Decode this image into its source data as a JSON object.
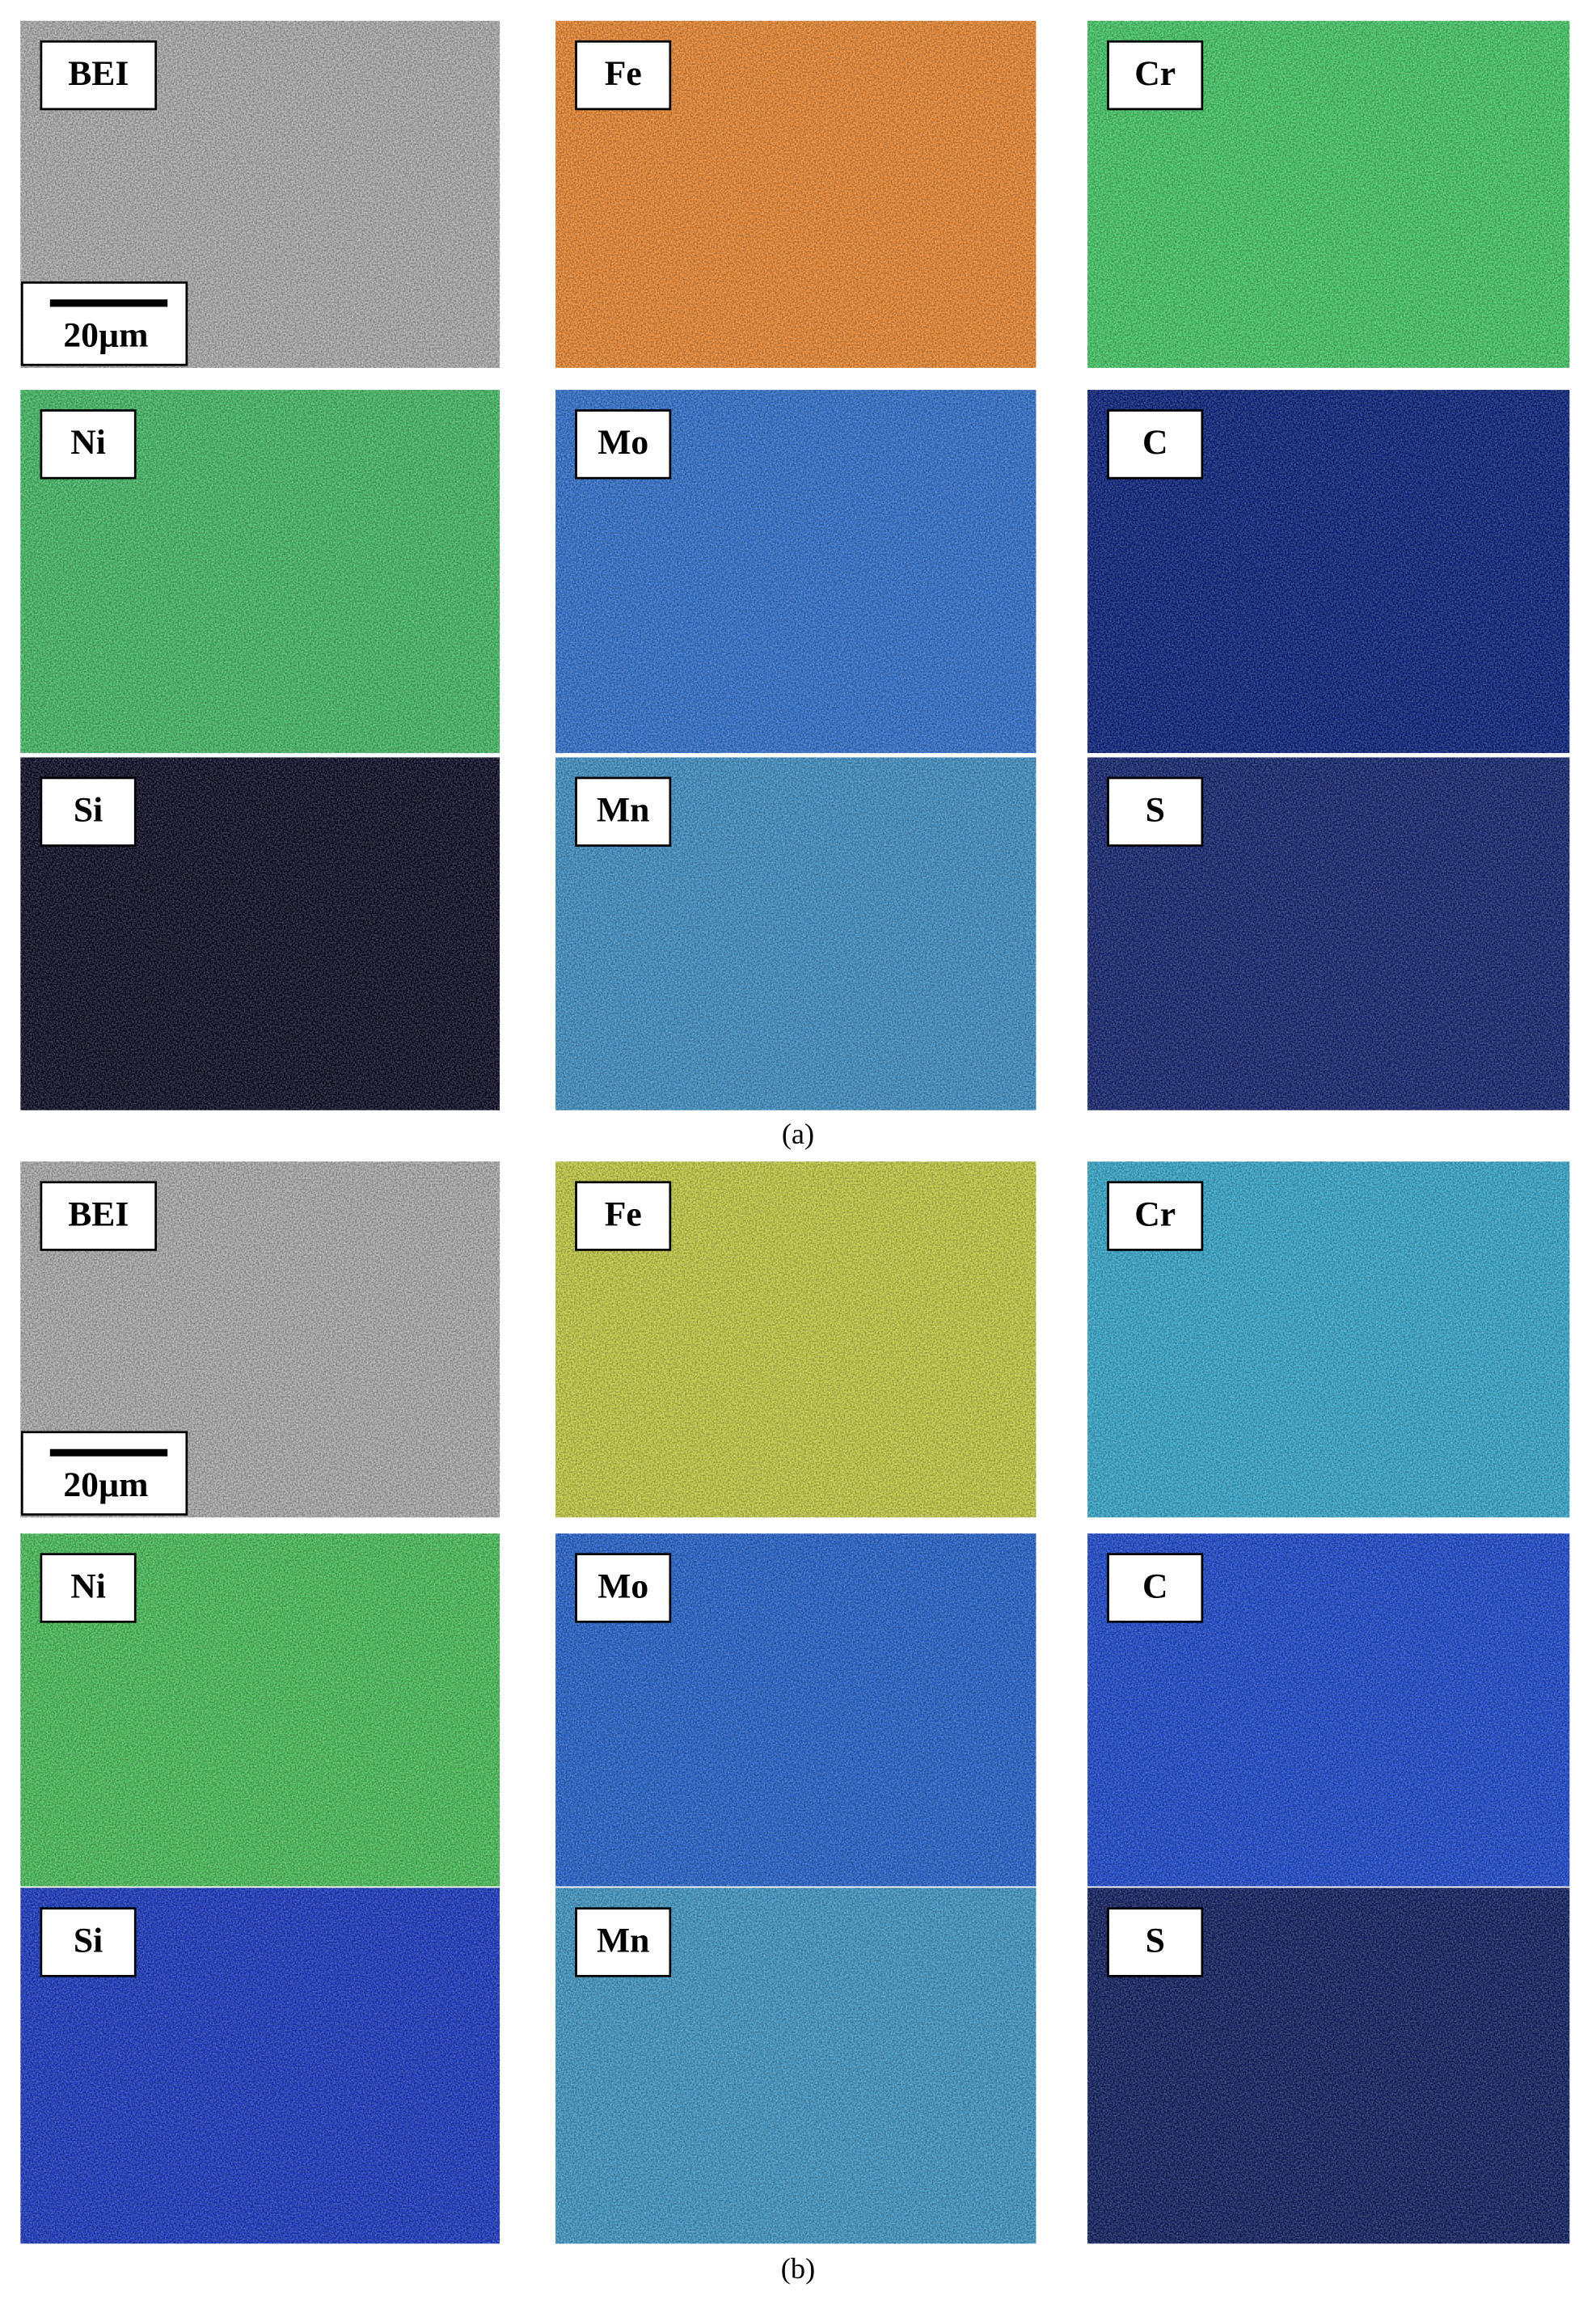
{
  "panels": [
    {
      "caption": "(a)",
      "scale_bar": "20µm",
      "maps": [
        "BEI",
        "Fe",
        "Cr",
        "Ni",
        "Mo",
        "C",
        "Si",
        "Mn",
        "S"
      ]
    },
    {
      "caption": "(b)",
      "scale_bar": "20µm",
      "maps": [
        "BEI",
        "Fe",
        "Cr",
        "Ni",
        "Mo",
        "C",
        "Si",
        "Mn",
        "S"
      ]
    }
  ]
}
